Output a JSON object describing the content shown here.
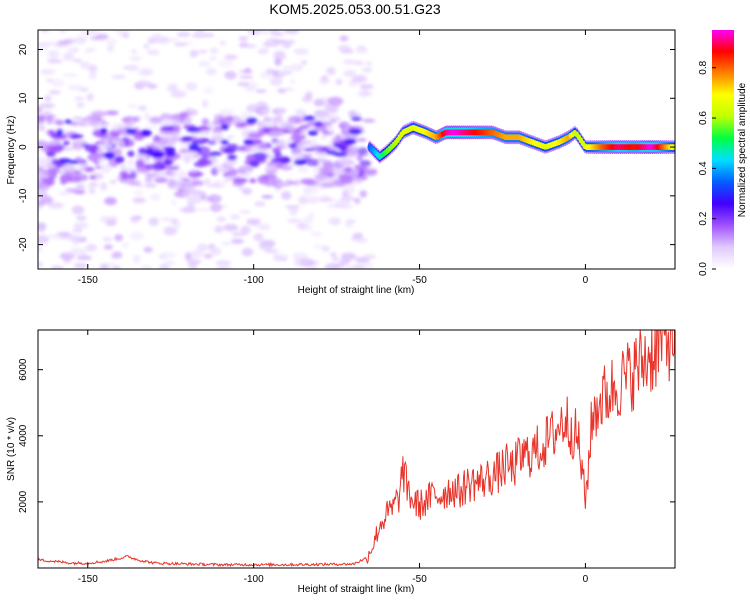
{
  "title": "KOM5.2025.053.00.51.G23",
  "chart_data": [
    {
      "type": "heatmap",
      "title": "KOM5.2025.053.00.51.G23",
      "xlabel": "Height of straight line (km)",
      "ylabel": "Frequency (Hz)",
      "xlim": [
        -165,
        27
      ],
      "ylim": [
        -25,
        24
      ],
      "xticks": [
        -150,
        -100,
        -50,
        0
      ],
      "yticks": [
        -20,
        -10,
        0,
        10,
        20
      ],
      "colorbar": {
        "label": "Normalized spectral amplitude",
        "range": [
          0,
          0.95
        ],
        "ticks": [
          0.0,
          0.2,
          0.4,
          0.6,
          0.8
        ],
        "colormap": [
          "#ffffff",
          "#e0c8ff",
          "#a050ff",
          "#4000ff",
          "#0060ff",
          "#00e0ff",
          "#00ff40",
          "#c0ff00",
          "#ffff00",
          "#ff8000",
          "#ff0000",
          "#ff00ff"
        ]
      },
      "ridge": {
        "x": [
          -65,
          -62,
          -60,
          -57,
          -55,
          -52,
          -48,
          -45,
          -42,
          -40,
          -36,
          -32,
          -28,
          -24,
          -20,
          -16,
          -12,
          -8,
          -5,
          -3,
          0,
          5,
          10,
          15,
          20,
          27
        ],
        "y": [
          0,
          -2,
          -1,
          1,
          3,
          4,
          3,
          2,
          3,
          3,
          3,
          3,
          3,
          2,
          2,
          1,
          0,
          1,
          2,
          3,
          0,
          0,
          0,
          0,
          0,
          0
        ],
        "amplitude": [
          0.3,
          0.4,
          0.5,
          0.55,
          0.6,
          0.6,
          0.65,
          0.7,
          0.85,
          0.9,
          0.85,
          0.8,
          0.75,
          0.7,
          0.7,
          0.65,
          0.6,
          0.65,
          0.7,
          0.55,
          0.6,
          0.75,
          0.85,
          0.8,
          0.9,
          0.6
        ]
      },
      "noise_region": {
        "x": [
          -165,
          -65
        ],
        "y": [
          -25,
          24
        ],
        "amplitude_max": 0.25
      }
    },
    {
      "type": "line",
      "xlabel": "Height of straight line (km)",
      "ylabel": "SNR (10 * v/v)",
      "xlim": [
        -165,
        27
      ],
      "ylim": [
        0,
        7200
      ],
      "xticks": [
        -150,
        -100,
        -50,
        0
      ],
      "yticks": [
        2000,
        4000,
        6000
      ],
      "line_color": "#e8342a",
      "series": [
        {
          "x": [
            -165,
            -160,
            -155,
            -150,
            -145,
            -140,
            -138,
            -135,
            -130,
            -120,
            -110,
            -100,
            -90,
            -80,
            -70,
            -66,
            -64,
            -62,
            -60,
            -58,
            -56,
            -55,
            -54,
            -52,
            -50,
            -48,
            -46,
            -44,
            -42,
            -40,
            -38,
            -36,
            -34,
            -32,
            -30,
            -28,
            -26,
            -24,
            -22,
            -20,
            -18,
            -16,
            -14,
            -12,
            -10,
            -8,
            -6,
            -4,
            -2,
            0,
            2,
            4,
            6,
            8,
            10,
            12,
            14,
            16,
            18,
            20,
            22,
            24,
            27
          ],
          "y": [
            250,
            200,
            150,
            150,
            200,
            300,
            350,
            250,
            150,
            120,
            100,
            100,
            100,
            110,
            120,
            300,
            700,
            1300,
            1600,
            1800,
            2200,
            3000,
            2500,
            2000,
            1900,
            2000,
            2200,
            2200,
            2300,
            2400,
            2300,
            2500,
            2600,
            2600,
            2700,
            2800,
            2900,
            3100,
            3000,
            3300,
            3400,
            3500,
            3600,
            3800,
            4000,
            4300,
            4500,
            4200,
            3800,
            2000,
            4500,
            5000,
            5200,
            5400,
            5600,
            5700,
            5900,
            6100,
            6300,
            6500,
            6700,
            6900,
            7100
          ]
        }
      ]
    }
  ]
}
